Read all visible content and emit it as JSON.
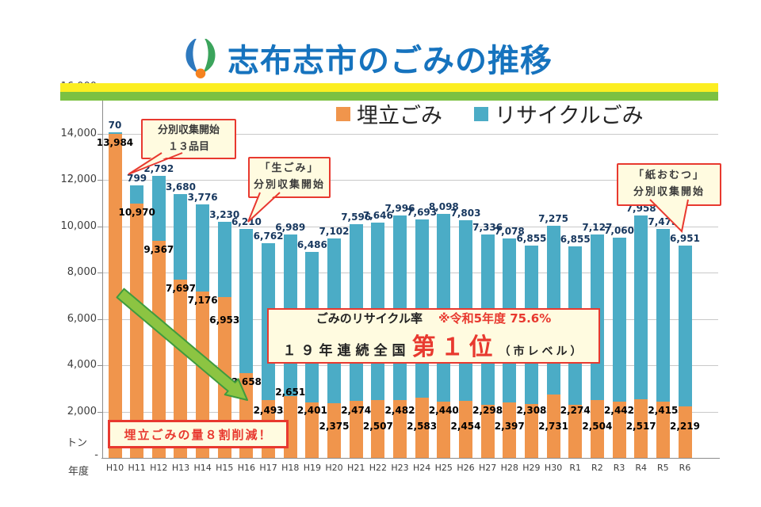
{
  "header": {
    "title": "志布志市のごみの推移",
    "title_color": "#1673BE",
    "logo": "shibushi-city-logo"
  },
  "legend": {
    "items": [
      {
        "label": "埋立ごみ",
        "color": "#F0954C"
      },
      {
        "label": "リサイクルごみ",
        "color": "#4BACC6"
      }
    ]
  },
  "chart_data": {
    "type": "bar",
    "stacked": true,
    "title": "志布志市のごみの推移",
    "unit": "トン",
    "x_axis_title": "年度",
    "zero_tick_label": "-",
    "ylim": [
      0,
      16000
    ],
    "ytick_step": 2000,
    "grid": true,
    "legend_position": "top",
    "categories": [
      "H10",
      "H11",
      "H12",
      "H13",
      "H14",
      "H15",
      "H16",
      "H17",
      "H18",
      "H19",
      "H20",
      "H21",
      "H22",
      "H23",
      "H24",
      "H25",
      "H26",
      "H27",
      "H28",
      "H29",
      "H30",
      "R1",
      "R2",
      "R3",
      "R4",
      "R5",
      "R6"
    ],
    "series": [
      {
        "name": "埋立ごみ",
        "color": "#F0954C",
        "label_color": "#000000",
        "values": [
          13984,
          10970,
          9367,
          7697,
          7176,
          6953,
          3658,
          2493,
          2651,
          2401,
          2375,
          2474,
          2507,
          2482,
          2583,
          2440,
          2454,
          2298,
          2397,
          2308,
          2731,
          2274,
          2504,
          2442,
          2517,
          2415,
          2219
        ]
      },
      {
        "name": "リサイクルごみ",
        "color": "#4BACC6",
        "label_color": "#17375E",
        "values": [
          70,
          799,
          2792,
          3680,
          3776,
          3230,
          6210,
          6762,
          6989,
          6486,
          7102,
          7596,
          7646,
          7996,
          7693,
          8098,
          7803,
          7336,
          7078,
          6855,
          7275,
          6855,
          7127,
          7060,
          7958,
          7473,
          6951
        ]
      }
    ],
    "label_layout": {
      "rows": [
        "in",
        "in",
        "in",
        "in",
        "in",
        "in",
        "in",
        "upper",
        "raised",
        "upper",
        "lower",
        "upper",
        "lower",
        "upper",
        "lower",
        "upper",
        "lower",
        "upper",
        "lower",
        "upper",
        "lower",
        "upper",
        "lower",
        "upper",
        "lower",
        "upper",
        "lower"
      ],
      "nudge": {
        "5": 18
      }
    }
  },
  "callouts": [
    {
      "id": "callout-13items",
      "lines": [
        "分別収集開始",
        "１３品目"
      ]
    },
    {
      "id": "callout-food-waste",
      "lines": [
        "「生ごみ」",
        "分別収集開始"
      ]
    },
    {
      "id": "callout-diapers",
      "lines": [
        "「紙おむつ」",
        "分別収集開始"
      ]
    }
  ],
  "recycle_rate_box": {
    "heading": "ごみのリサイクル率",
    "note": "※令和5年度 75.6%",
    "streak_prefix": "１９年連続全国",
    "rank": "第１位",
    "rank_suffix": "（市レベル）"
  },
  "reduction_box": {
    "text": "埋立ごみの量８割削減！"
  },
  "colors": {
    "grid": "#C9C9C9",
    "axis": "#8C8C8C",
    "stripe_yellow": "#FCEE21",
    "stripe_green": "#7CC142",
    "callout_bg": "#FFFBE0",
    "callout_border": "#E8392F",
    "arrow_fill": "#8CC442",
    "arrow_stroke": "#3E9B3E",
    "red_text": "#E8392F"
  }
}
